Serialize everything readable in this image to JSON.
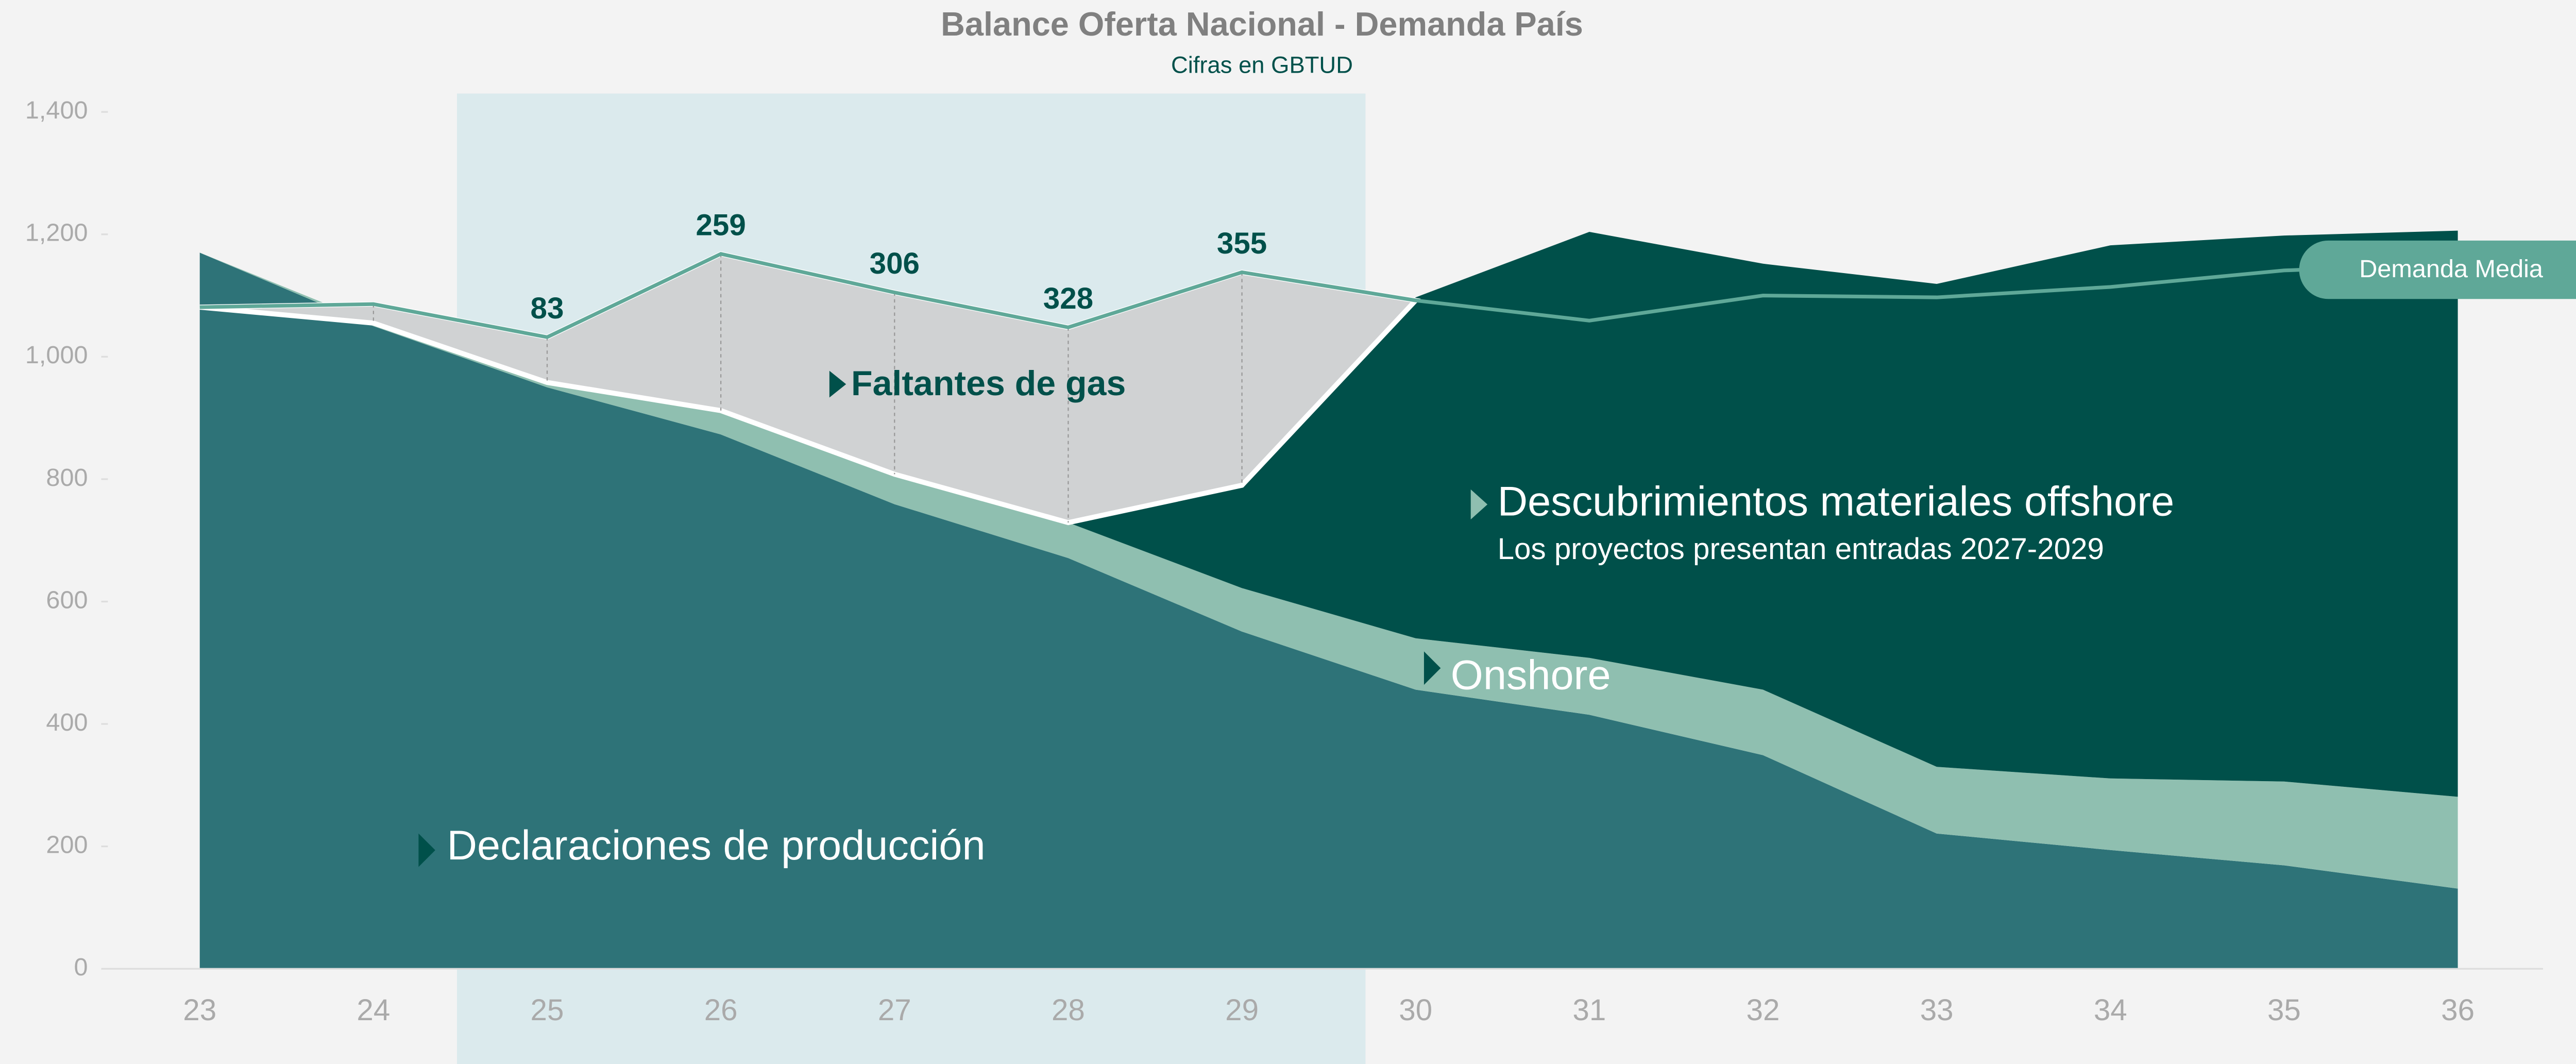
{
  "chart_data": {
    "type": "area",
    "title": "Balance Oferta Nacional - Demanda País",
    "subtitle": "Cifras en GBTUD",
    "categories": [
      "23",
      "24",
      "25",
      "26",
      "27",
      "28",
      "29",
      "30",
      "31",
      "32",
      "33",
      "34",
      "35",
      "36"
    ],
    "series": [
      {
        "name": "Declaraciones de producción",
        "color": "#2e7378",
        "values": [
          1170,
          1050,
          950,
          873,
          759,
          671,
          551,
          456,
          415,
          349,
          221,
          194,
          169,
          131
        ]
      },
      {
        "name": "Onshore",
        "color": "#8fbfb0",
        "values": [
          0,
          5,
          8,
          39,
          49,
          58,
          71,
          84,
          93,
          107,
          109,
          117,
          137,
          150
        ]
      },
      {
        "name": "Descubrimientos materiales offshore",
        "color": "#00504a",
        "values": [
          0,
          0,
          0,
          0,
          0,
          0,
          168,
          557,
          696,
          696,
          789,
          871,
          892,
          925
        ]
      },
      {
        "name": "Demanda Media",
        "color": "#5fa898",
        "type": "line",
        "values": [
          1081,
          1086,
          1032,
          1168,
          1105,
          1048,
          1138,
          1092,
          1059,
          1100,
          1097,
          1114,
          1141,
          1152
        ]
      }
    ],
    "shortage_label": "Faltantes de gas",
    "shortages": {
      "categories": [
        "25",
        "26",
        "27",
        "28",
        "29"
      ],
      "values": [
        83,
        259,
        306,
        328,
        355
      ]
    },
    "offshore_note": "Los proyectos presentan entradas 2027-2029",
    "ylim": [
      0,
      1400
    ],
    "yticks": [
      0,
      200,
      400,
      600,
      800,
      {
        "value": 1000,
        "label": "1,000"
      },
      {
        "value": 1200,
        "label": "1,200"
      },
      {
        "value": 1400,
        "label": "1,400"
      }
    ]
  }
}
